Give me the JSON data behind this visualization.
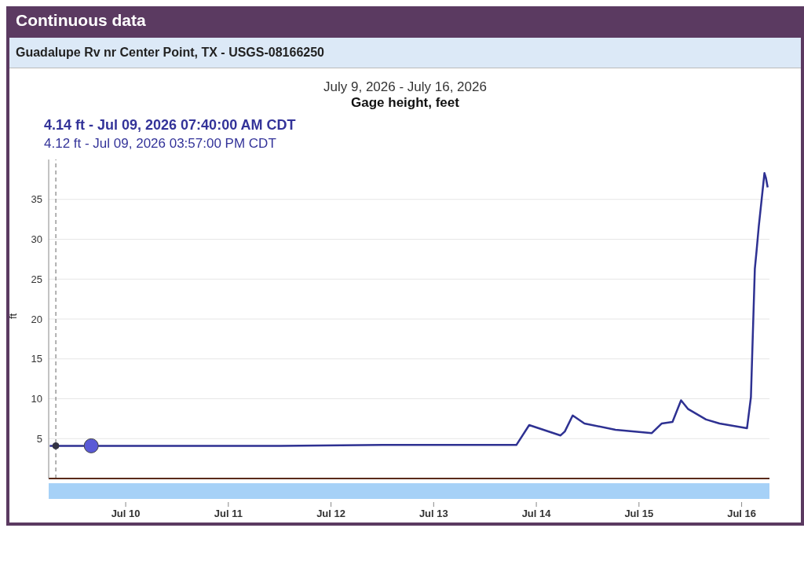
{
  "chart_data": {
    "type": "line",
    "title": "Gage height, feet",
    "subtitle": "July 9, 2026 - July 16, 2026",
    "ylabel": "ft",
    "x": [
      "2026-07-09T06:15",
      "2026-07-09T07:40",
      "2026-07-09T15:57",
      "2026-07-10T12:00",
      "2026-07-11T12:00",
      "2026-07-12T12:00",
      "2026-07-13T12:00",
      "2026-07-13T19:20",
      "2026-07-13T22:20",
      "2026-07-14T05:40",
      "2026-07-14T06:40",
      "2026-07-14T08:30",
      "2026-07-14T11:15",
      "2026-07-14T18:30",
      "2026-07-15T03:00",
      "2026-07-15T05:20",
      "2026-07-15T07:50",
      "2026-07-15T09:50",
      "2026-07-15T11:30",
      "2026-07-15T15:40",
      "2026-07-15T18:50",
      "2026-07-16T01:15",
      "2026-07-16T02:10",
      "2026-07-16T03:05",
      "2026-07-16T03:30",
      "2026-07-16T04:00",
      "2026-07-16T05:20",
      "2026-07-16T05:40",
      "2026-07-16T06:05"
    ],
    "series": [
      {
        "color": "#2e3192",
        "marker": "none",
        "values": [
          4.1,
          4.1,
          4.1,
          4.1,
          4.1,
          4.2,
          4.2,
          4.2,
          6.7,
          5.4,
          5.9,
          7.9,
          6.9,
          6.1,
          5.7,
          6.9,
          7.1,
          9.8,
          8.7,
          7.4,
          6.9,
          6.3,
          10.2,
          26.3,
          28.6,
          31.6,
          38.3,
          37.7,
          36.5
        ]
      },
      {
        "type": "scatter",
        "marker": "circle",
        "colors": [
          "#333344",
          "#5a5ad6"
        ],
        "x": [
          "2026-07-09T07:40",
          "2026-07-09T15:57"
        ],
        "values": [
          4.1,
          4.1
        ]
      }
    ],
    "xlim": [
      "2026-07-09T06:00",
      "2026-07-16T06:30"
    ],
    "xticks": [
      {
        "value": "2026-07-10",
        "label": "Jul 10"
      },
      {
        "value": "2026-07-11",
        "label": "Jul 11"
      },
      {
        "value": "2026-07-12",
        "label": "Jul 12"
      },
      {
        "value": "2026-07-13",
        "label": "Jul 13"
      },
      {
        "value": "2026-07-14",
        "label": "Jul 14"
      },
      {
        "value": "2026-07-15",
        "label": "Jul 15"
      },
      {
        "value": "2026-07-16",
        "label": "Jul 16"
      }
    ],
    "ylim": [
      0,
      40
    ],
    "yticks": [
      5,
      10,
      15,
      20,
      25,
      30,
      35
    ],
    "grid": "y",
    "line_style": "solid",
    "ref_lines": [
      {
        "axis": "x",
        "value": "2026-07-09T07:40",
        "color": "#666666",
        "line_style": "dashed"
      }
    ],
    "annotations": [
      "Continuous data",
      "Guadalupe Rv nr Center Point, TX - USGS-08166250",
      "4.14 ft - Jul 09, 2026 07:40:00 AM CDT",
      "4.12 ft - Jul 09, 2026 03:57:00 PM CDT"
    ]
  }
}
